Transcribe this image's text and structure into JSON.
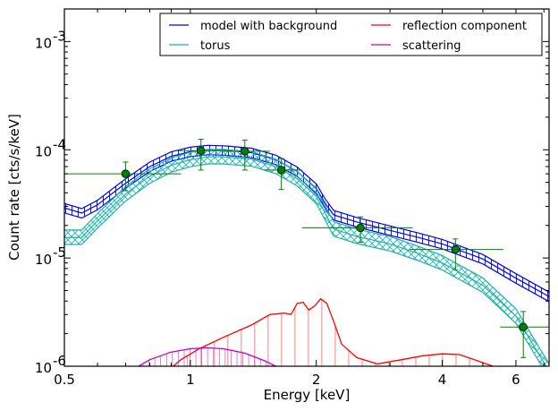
{
  "chart_data": {
    "type": "line",
    "xlabel": "Energy [keV]",
    "ylabel": "Count rate [cts/s/keV]",
    "xscale": "log",
    "yscale": "log",
    "xlim": [
      0.5,
      7.2
    ],
    "ylim": [
      1e-06,
      0.002
    ],
    "grid": false,
    "legend_position": "top-right",
    "x_ticks": [
      {
        "value": 0.5,
        "label": "0.5"
      },
      {
        "value": 1,
        "label": "1"
      },
      {
        "value": 2,
        "label": "2"
      },
      {
        "value": 4,
        "label": "4"
      },
      {
        "value": 6,
        "label": "6"
      }
    ],
    "y_ticks": [
      {
        "value": 1e-06,
        "base": "10",
        "exp": "-6"
      },
      {
        "value": 1e-05,
        "base": "10",
        "exp": "-5"
      },
      {
        "value": 0.0001,
        "base": "10",
        "exp": "-4"
      },
      {
        "value": 0.001,
        "base": "10",
        "exp": "-3"
      }
    ],
    "series": [
      {
        "name": "model with background",
        "color": "#0000ff",
        "style": "hatched-band",
        "points": [
          [
            0.5,
            2.9e-05
          ],
          [
            0.55,
            2.6e-05
          ],
          [
            0.6,
            3.1e-05
          ],
          [
            0.7,
            4.9e-05
          ],
          [
            0.8,
            7e-05
          ],
          [
            0.9,
            8.7e-05
          ],
          [
            1.0,
            9.6e-05
          ],
          [
            1.1,
            0.0001
          ],
          [
            1.2,
            9.9e-05
          ],
          [
            1.4,
            9.4e-05
          ],
          [
            1.6,
            8.1e-05
          ],
          [
            1.8,
            6.3e-05
          ],
          [
            2.0,
            4.4e-05
          ],
          [
            2.1,
            3.2e-05
          ],
          [
            2.2,
            2.5e-05
          ],
          [
            2.5,
            2.15e-05
          ],
          [
            3.0,
            1.8e-05
          ],
          [
            3.5,
            1.55e-05
          ],
          [
            4.0,
            1.35e-05
          ],
          [
            5.0,
            9.8e-06
          ],
          [
            6.0,
            6.5e-06
          ],
          [
            7.2,
            4.4e-06
          ]
        ],
        "band_low": 0.9,
        "band_high": 1.1
      },
      {
        "name": "torus",
        "color": "#20b2aa",
        "style": "crosshatched-band",
        "points": [
          [
            0.5,
            1.55e-05
          ],
          [
            0.55,
            1.55e-05
          ],
          [
            0.6,
            2.2e-05
          ],
          [
            0.7,
            3.9e-05
          ],
          [
            0.8,
            5.7e-05
          ],
          [
            0.9,
            7.2e-05
          ],
          [
            1.0,
            8.1e-05
          ],
          [
            1.1,
            8.6e-05
          ],
          [
            1.2,
            8.6e-05
          ],
          [
            1.4,
            8.2e-05
          ],
          [
            1.6,
            7e-05
          ],
          [
            1.8,
            5.4e-05
          ],
          [
            2.0,
            3.7e-05
          ],
          [
            2.1,
            2.6e-05
          ],
          [
            2.2,
            1.85e-05
          ],
          [
            2.5,
            1.58e-05
          ],
          [
            3.0,
            1.35e-05
          ],
          [
            3.5,
            1.1e-05
          ],
          [
            4.0,
            9e-06
          ],
          [
            5.0,
            5.6e-06
          ],
          [
            6.0,
            2.9e-06
          ],
          [
            7.2,
            9e-07
          ]
        ],
        "band_low": 0.86,
        "band_high": 1.17
      },
      {
        "name": "reflection component",
        "color": "#ff0000",
        "style": "line-with-drops",
        "points": [
          [
            0.85,
            8e-07
          ],
          [
            0.95,
            1.15e-06
          ],
          [
            1.05,
            1.45e-06
          ],
          [
            1.2,
            1.85e-06
          ],
          [
            1.4,
            2.4e-06
          ],
          [
            1.55,
            3e-06
          ],
          [
            1.68,
            3.1e-06
          ],
          [
            1.74,
            3e-06
          ],
          [
            1.8,
            3.8e-06
          ],
          [
            1.86,
            3.9e-06
          ],
          [
            1.92,
            3.3e-06
          ],
          [
            1.98,
            3.6e-06
          ],
          [
            2.05,
            4.2e-06
          ],
          [
            2.12,
            3.8e-06
          ],
          [
            2.2,
            2.6e-06
          ],
          [
            2.3,
            1.6e-06
          ],
          [
            2.5,
            1.2e-06
          ],
          [
            2.8,
            1.05e-06
          ],
          [
            3.2,
            1.15e-06
          ],
          [
            3.6,
            1.25e-06
          ],
          [
            4.0,
            1.3e-06
          ],
          [
            4.4,
            1.28e-06
          ],
          [
            5.0,
            1.08e-06
          ],
          [
            5.8,
            8.8e-07
          ]
        ]
      },
      {
        "name": "scattering",
        "color": "#c000c0",
        "style": "line-with-drops",
        "points": [
          [
            0.7,
            8.5e-07
          ],
          [
            0.8,
            1.15e-06
          ],
          [
            0.9,
            1.35e-06
          ],
          [
            1.0,
            1.45e-06
          ],
          [
            1.1,
            1.48e-06
          ],
          [
            1.2,
            1.45e-06
          ],
          [
            1.35,
            1.32e-06
          ],
          [
            1.5,
            1.13e-06
          ],
          [
            1.62,
            9.8e-07
          ]
        ]
      }
    ],
    "data_points": [
      {
        "x": 0.7,
        "y": 6e-05,
        "xerr": [
          0.5,
          0.95
        ],
        "yerr": [
          4.2e-05,
          7.7e-05
        ]
      },
      {
        "x": 1.06,
        "y": 9.8e-05,
        "xerr": [
          0.92,
          1.24
        ],
        "yerr": [
          6.5e-05,
          0.000125
        ]
      },
      {
        "x": 1.35,
        "y": 9.7e-05,
        "xerr": [
          1.2,
          1.55
        ],
        "yerr": [
          6.5e-05,
          0.000123
        ]
      },
      {
        "x": 1.65,
        "y": 6.5e-05,
        "xerr": [
          1.5,
          1.85
        ],
        "yerr": [
          4.3e-05,
          8.3e-05
        ]
      },
      {
        "x": 2.55,
        "y": 1.9e-05,
        "xerr": [
          1.85,
          3.4
        ],
        "yerr": [
          1.4e-05,
          2.4e-05
        ]
      },
      {
        "x": 4.3,
        "y": 1.2e-05,
        "xerr": [
          3.35,
          5.6
        ],
        "yerr": [
          7.8e-06,
          1.5e-05
        ]
      },
      {
        "x": 6.25,
        "y": 2.3e-06,
        "xerr": [
          5.5,
          7.2
        ],
        "yerr": [
          1.2e-06,
          3.2e-06
        ]
      }
    ],
    "data_point_color": "#008000"
  }
}
